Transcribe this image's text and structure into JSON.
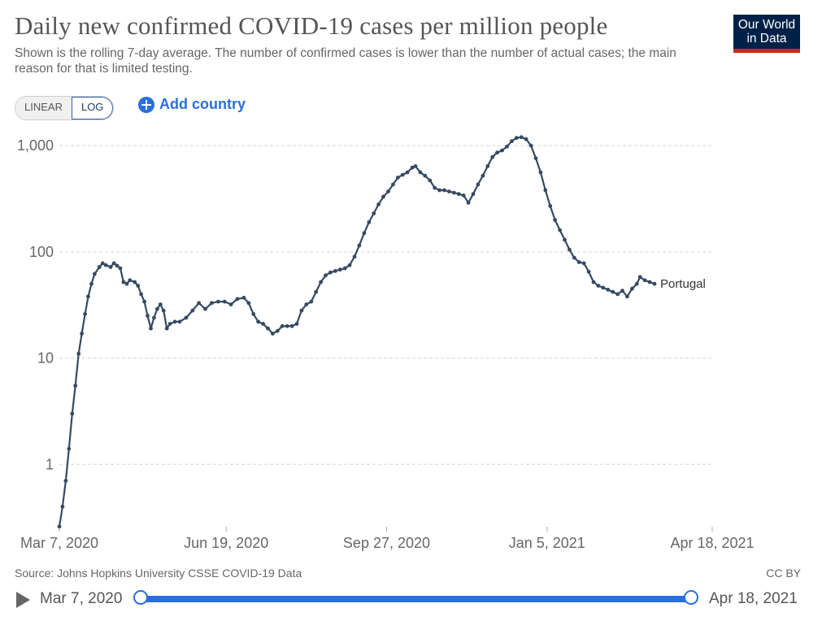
{
  "header": {
    "title": "Daily new confirmed COVID-19 cases per million people",
    "subtitle": "Shown is the rolling 7-day average. The number of confirmed cases is lower than the number of actual cases; the main reason for that is limited testing.",
    "logo_line1": "Our World",
    "logo_line2": "in Data"
  },
  "controls": {
    "linear_label": "LINEAR",
    "log_label": "LOG",
    "add_country_label": "Add country"
  },
  "footer": {
    "source": "Source: Johns Hopkins University CSSE COVID-19 Data",
    "license": "CC BY"
  },
  "timeline": {
    "start_label": "Mar 7, 2020",
    "end_label": "Apr 18, 2021"
  },
  "colors": {
    "series": "#364a63",
    "accent": "#2a6fdb",
    "logo_bg": "#002147",
    "logo_bar": "#ce261e"
  },
  "chart_data": {
    "type": "line",
    "yscale": "log",
    "ylim": [
      0.25,
      1400
    ],
    "y_ticks": [
      1,
      10,
      100,
      1000
    ],
    "y_tick_labels": [
      "1",
      "10",
      "100",
      "1,000"
    ],
    "xlim": [
      "2020-03-07",
      "2021-04-18"
    ],
    "x_ticks": [
      "2020-03-07",
      "2020-06-19",
      "2020-09-27",
      "2021-01-05",
      "2021-04-18"
    ],
    "x_tick_labels": [
      "Mar 7, 2020",
      "Jun 19, 2020",
      "Sep 27, 2020",
      "Jan 5, 2021",
      "Apr 18, 2021"
    ],
    "grid": "horizontal-dashed",
    "series": [
      {
        "name": "Portugal",
        "points": [
          [
            "2020-03-07",
            0.26
          ],
          [
            "2020-03-09",
            0.4
          ],
          [
            "2020-03-11",
            0.7
          ],
          [
            "2020-03-13",
            1.4
          ],
          [
            "2020-03-15",
            3.0
          ],
          [
            "2020-03-17",
            5.5
          ],
          [
            "2020-03-19",
            11
          ],
          [
            "2020-03-21",
            17
          ],
          [
            "2020-03-23",
            26
          ],
          [
            "2020-03-25",
            38
          ],
          [
            "2020-03-27",
            50
          ],
          [
            "2020-03-29",
            62
          ],
          [
            "2020-04-01",
            72
          ],
          [
            "2020-04-03",
            78
          ],
          [
            "2020-04-05",
            75
          ],
          [
            "2020-04-08",
            72
          ],
          [
            "2020-04-10",
            78
          ],
          [
            "2020-04-12",
            74
          ],
          [
            "2020-04-14",
            70
          ],
          [
            "2020-04-16",
            52
          ],
          [
            "2020-04-18",
            50
          ],
          [
            "2020-04-20",
            54
          ],
          [
            "2020-04-23",
            52
          ],
          [
            "2020-04-25",
            48
          ],
          [
            "2020-04-27",
            40
          ],
          [
            "2020-04-29",
            34
          ],
          [
            "2020-05-01",
            25
          ],
          [
            "2020-05-03",
            19
          ],
          [
            "2020-05-05",
            24
          ],
          [
            "2020-05-07",
            29
          ],
          [
            "2020-05-09",
            32
          ],
          [
            "2020-05-11",
            28
          ],
          [
            "2020-05-13",
            19
          ],
          [
            "2020-05-15",
            21
          ],
          [
            "2020-05-18",
            22
          ],
          [
            "2020-05-21",
            22
          ],
          [
            "2020-05-25",
            24
          ],
          [
            "2020-05-29",
            28
          ],
          [
            "2020-06-02",
            33
          ],
          [
            "2020-06-06",
            29
          ],
          [
            "2020-06-10",
            33
          ],
          [
            "2020-06-14",
            34
          ],
          [
            "2020-06-18",
            34
          ],
          [
            "2020-06-22",
            32
          ],
          [
            "2020-06-26",
            36
          ],
          [
            "2020-06-30",
            37
          ],
          [
            "2020-07-03",
            33
          ],
          [
            "2020-07-06",
            26
          ],
          [
            "2020-07-09",
            22
          ],
          [
            "2020-07-12",
            21
          ],
          [
            "2020-07-15",
            19
          ],
          [
            "2020-07-18",
            17
          ],
          [
            "2020-07-21",
            18
          ],
          [
            "2020-07-24",
            20
          ],
          [
            "2020-07-27",
            20
          ],
          [
            "2020-07-30",
            20
          ],
          [
            "2020-08-02",
            21
          ],
          [
            "2020-08-05",
            28
          ],
          [
            "2020-08-08",
            32
          ],
          [
            "2020-08-11",
            34
          ],
          [
            "2020-08-14",
            42
          ],
          [
            "2020-08-17",
            52
          ],
          [
            "2020-08-20",
            60
          ],
          [
            "2020-08-23",
            64
          ],
          [
            "2020-08-26",
            66
          ],
          [
            "2020-08-29",
            68
          ],
          [
            "2020-09-01",
            70
          ],
          [
            "2020-09-04",
            75
          ],
          [
            "2020-09-07",
            90
          ],
          [
            "2020-09-10",
            115
          ],
          [
            "2020-09-13",
            150
          ],
          [
            "2020-09-16",
            190
          ],
          [
            "2020-09-19",
            230
          ],
          [
            "2020-09-22",
            280
          ],
          [
            "2020-09-25",
            330
          ],
          [
            "2020-09-28",
            370
          ],
          [
            "2020-10-01",
            430
          ],
          [
            "2020-10-04",
            500
          ],
          [
            "2020-10-07",
            530
          ],
          [
            "2020-10-10",
            560
          ],
          [
            "2020-10-13",
            620
          ],
          [
            "2020-10-15",
            640
          ],
          [
            "2020-10-18",
            560
          ],
          [
            "2020-10-21",
            520
          ],
          [
            "2020-10-24",
            470
          ],
          [
            "2020-10-27",
            400
          ],
          [
            "2020-10-30",
            380
          ],
          [
            "2020-11-02",
            380
          ],
          [
            "2020-11-05",
            370
          ],
          [
            "2020-11-08",
            360
          ],
          [
            "2020-11-11",
            350
          ],
          [
            "2020-11-14",
            340
          ],
          [
            "2020-11-17",
            290
          ],
          [
            "2020-11-20",
            350
          ],
          [
            "2020-11-23",
            430
          ],
          [
            "2020-11-26",
            520
          ],
          [
            "2020-11-29",
            640
          ],
          [
            "2020-12-02",
            780
          ],
          [
            "2020-12-05",
            860
          ],
          [
            "2020-12-08",
            900
          ],
          [
            "2020-12-11",
            980
          ],
          [
            "2020-12-14",
            1100
          ],
          [
            "2020-12-17",
            1180
          ],
          [
            "2020-12-20",
            1200
          ],
          [
            "2020-12-23",
            1150
          ],
          [
            "2020-12-26",
            1000
          ],
          [
            "2020-12-29",
            760
          ],
          [
            "2021-01-01",
            560
          ],
          [
            "2021-01-04",
            380
          ],
          [
            "2021-01-07",
            270
          ],
          [
            "2021-01-10",
            200
          ],
          [
            "2021-01-13",
            160
          ],
          [
            "2021-01-16",
            130
          ],
          [
            "2021-01-19",
            105
          ],
          [
            "2021-01-22",
            88
          ],
          [
            "2021-01-25",
            80
          ],
          [
            "2021-01-28",
            78
          ],
          [
            "2021-01-31",
            65
          ],
          [
            "2021-02-03",
            52
          ],
          [
            "2021-02-06",
            48
          ],
          [
            "2021-02-09",
            46
          ],
          [
            "2021-02-12",
            44
          ],
          [
            "2021-02-15",
            42
          ],
          [
            "2021-02-18",
            40
          ],
          [
            "2021-02-21",
            43
          ],
          [
            "2021-02-24",
            38
          ],
          [
            "2021-02-27",
            45
          ],
          [
            "2021-03-02",
            50
          ],
          [
            "2021-03-04",
            58
          ],
          [
            "2021-03-07",
            54
          ],
          [
            "2021-03-10",
            52
          ],
          [
            "2021-03-13",
            50
          ]
        ]
      }
    ]
  }
}
